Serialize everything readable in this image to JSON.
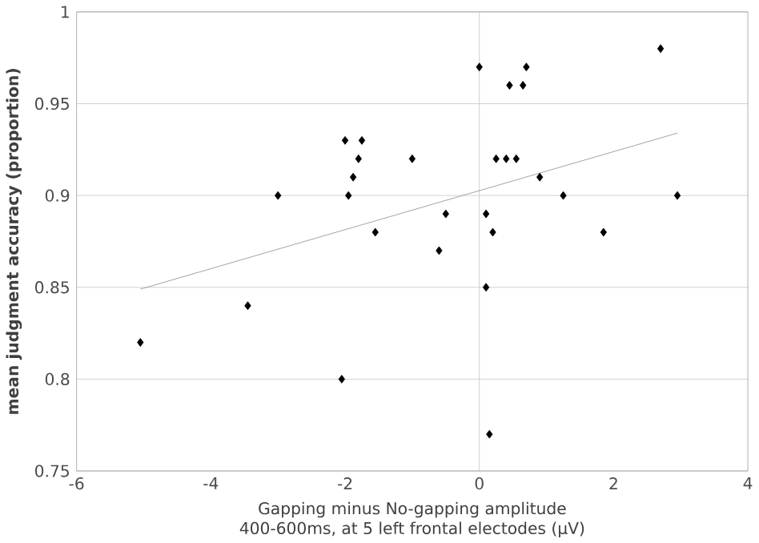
{
  "chart_data": {
    "type": "scatter",
    "xlabel": "Gapping minus No-gapping amplitude\n400-600ms, at 5 left frontal electodes (µV)",
    "ylabel": "mean judgment accuracy (proportion)",
    "xlim": [
      -6,
      4
    ],
    "ylim": [
      0.75,
      1
    ],
    "xticks": [
      -6,
      -4,
      -2,
      0,
      2,
      4
    ],
    "yticks": [
      0.75,
      0.8,
      0.85,
      0.9,
      0.95,
      1
    ],
    "grid": "y",
    "marker": "diamond",
    "ref_lines": [
      {
        "axis": "x",
        "value": 0,
        "label": null,
        "color": "#c8c8c8"
      }
    ],
    "series": [
      {
        "color": "#000000",
        "x": [
          -5.05,
          -3.45,
          -3.0,
          -2.05,
          -2.0,
          -1.95,
          -1.88,
          -1.8,
          -1.75,
          -1.55,
          -1.0,
          -0.6,
          -0.5,
          0,
          0.1,
          0.1,
          0.15,
          0.2,
          0.25,
          0.4,
          0.45,
          0.55,
          0.65,
          0.7,
          0.9,
          1.25,
          1.85,
          2.7,
          2.95
        ],
        "values": [
          0.82,
          0.84,
          0.9,
          0.8,
          0.93,
          0.9,
          0.91,
          0.92,
          0.93,
          0.88,
          0.92,
          0.87,
          0.89,
          0.97,
          0.89,
          0.85,
          0.77,
          0.88,
          0.92,
          0.92,
          0.96,
          0.92,
          0.96,
          0.97,
          0.91,
          0.9,
          0.88,
          0.98,
          0.9
        ]
      },
      {
        "type": "line",
        "marker": "none",
        "color": "#999999",
        "x": [
          -5.05,
          2.95
        ],
        "values": [
          0.849,
          0.934
        ]
      }
    ]
  }
}
